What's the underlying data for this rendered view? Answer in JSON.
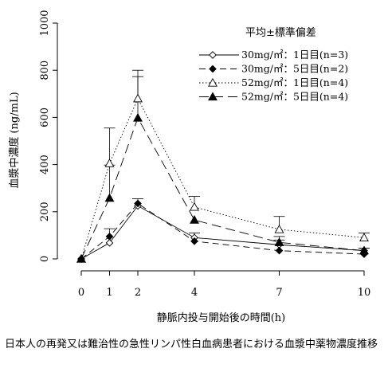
{
  "chart_data": {
    "type": "line",
    "title": "",
    "xlabel": "静脈内投与開始後の時間(h)",
    "ylabel": "血漿中濃度 (ng/mL)",
    "x_ticks": [
      0,
      1,
      2,
      4,
      7,
      10
    ],
    "y_ticks": [
      0,
      200,
      400,
      600,
      800,
      1000
    ],
    "xlim": [
      0,
      10
    ],
    "ylim": [
      0,
      1000
    ],
    "grid": false,
    "legend_title": "平均±標準偏差",
    "legend_position": "top-right",
    "series": [
      {
        "name": "30mg/㎡：1日目(n=3)",
        "marker": "diamond-open",
        "line_style": "solid",
        "x": [
          0,
          1,
          2,
          4,
          7,
          10
        ],
        "y": [
          0,
          68,
          225,
          90,
          60,
          35
        ],
        "error": [
          null,
          60,
          30,
          20,
          20,
          10
        ]
      },
      {
        "name": "30mg/㎡：5日目(n=2)",
        "marker": "diamond-filled",
        "line_style": "dashed",
        "x": [
          0,
          1,
          2,
          4,
          7,
          10
        ],
        "y": [
          0,
          95,
          235,
          75,
          35,
          20
        ],
        "error": [
          null,
          null,
          null,
          null,
          null,
          null
        ]
      },
      {
        "name": "52mg/㎡：1日目(n=4)",
        "marker": "triangle-open",
        "line_style": "dotted",
        "x": [
          0,
          1,
          2,
          4,
          7,
          10
        ],
        "y": [
          0,
          405,
          680,
          220,
          125,
          90
        ],
        "error": [
          null,
          150,
          120,
          45,
          55,
          20
        ]
      },
      {
        "name": "52mg/㎡：5日目(n=4)",
        "marker": "triangle-filled",
        "line_style": "long-dash",
        "x": [
          0,
          1,
          2,
          4,
          7,
          10
        ],
        "y": [
          0,
          258,
          598,
          165,
          70,
          35
        ],
        "error": [
          null,
          140,
          175,
          null,
          25,
          10
        ]
      }
    ]
  },
  "caption": "日本人の再発又は難治性の急性リンパ性白血病患者における血漿中薬物濃度推移"
}
